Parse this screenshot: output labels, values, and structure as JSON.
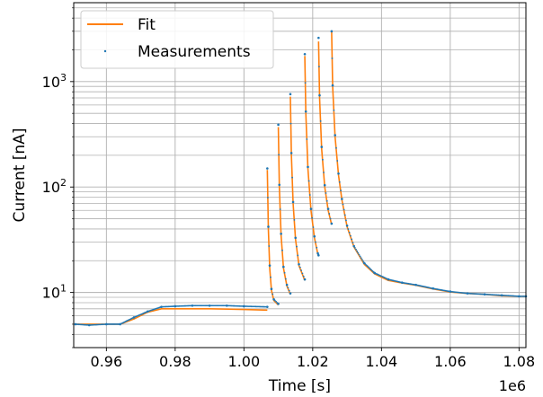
{
  "chart_data": {
    "type": "line",
    "title": "",
    "xlabel": "Time [s]",
    "ylabel": "Current [nA]",
    "x_offset_label": "1e6",
    "xlim": [
      0.9505,
      1.082
    ],
    "ylim": [
      3,
      5600
    ],
    "yscale": "log",
    "grid": true,
    "legend_position": "top-left",
    "x_ticks": [
      {
        "value": 0.96,
        "label": "0.96"
      },
      {
        "value": 0.98,
        "label": "0.98"
      },
      {
        "value": 1.0,
        "label": "1.00"
      },
      {
        "value": 1.02,
        "label": "1.02"
      },
      {
        "value": 1.04,
        "label": "1.04"
      },
      {
        "value": 1.06,
        "label": "1.06"
      },
      {
        "value": 1.08,
        "label": "1.08"
      }
    ],
    "y_ticks": [
      {
        "value": 10,
        "base": "10",
        "exp": "1"
      },
      {
        "value": 100,
        "base": "10",
        "exp": "2"
      },
      {
        "value": 1000,
        "base": "10",
        "exp": "3"
      }
    ],
    "colors": {
      "fit": "#ff7f0e",
      "measurements": "#1f77b4",
      "grid": "#b0b0b0"
    },
    "series": [
      {
        "name": "Fit",
        "style": "line",
        "segments": [
          [
            [
              0.951,
              5.0
            ],
            [
              0.964,
              5.0
            ],
            [
              0.968,
              5.6
            ],
            [
              0.972,
              6.5
            ],
            [
              0.976,
              7.0
            ],
            [
              0.98,
              7.0
            ],
            [
              0.99,
              7.0
            ],
            [
              1.0,
              6.9
            ],
            [
              1.0068,
              6.8
            ]
          ],
          [
            [
              1.0068,
              145
            ],
            [
              1.0071,
              40
            ],
            [
              1.0075,
              17
            ],
            [
              1.008,
              10.5
            ],
            [
              1.0087,
              8.4
            ],
            [
              1.01,
              7.6
            ]
          ],
          [
            [
              1.01,
              370
            ],
            [
              1.0103,
              100
            ],
            [
              1.0108,
              35
            ],
            [
              1.0115,
              17
            ],
            [
              1.0125,
              11.5
            ],
            [
              1.0135,
              9.6
            ]
          ],
          [
            [
              1.0135,
              720
            ],
            [
              1.0138,
              200
            ],
            [
              1.0143,
              70
            ],
            [
              1.015,
              32
            ],
            [
              1.016,
              18
            ],
            [
              1.0177,
              13
            ]
          ],
          [
            [
              1.0177,
              1750
            ],
            [
              1.018,
              500
            ],
            [
              1.0186,
              150
            ],
            [
              1.0195,
              60
            ],
            [
              1.0205,
              33
            ],
            [
              1.0215,
              23
            ],
            [
              1.0217,
              22
            ]
          ],
          [
            [
              1.0217,
              2400
            ],
            [
              1.022,
              700
            ],
            [
              1.0226,
              230
            ],
            [
              1.0235,
              100
            ],
            [
              1.0245,
              60
            ],
            [
              1.0255,
              44
            ]
          ],
          [
            [
              1.0255,
              3000
            ],
            [
              1.0258,
              900
            ],
            [
              1.0265,
              300
            ],
            [
              1.0275,
              130
            ],
            [
              1.0285,
              75
            ],
            [
              1.03,
              42
            ],
            [
              1.032,
              27
            ],
            [
              1.035,
              18.5
            ],
            [
              1.038,
              15
            ],
            [
              1.042,
              13
            ],
            [
              1.046,
              12.3
            ],
            [
              1.05,
              11.7
            ],
            [
              1.055,
              10.8
            ],
            [
              1.06,
              10.1
            ],
            [
              1.065,
              9.8
            ],
            [
              1.07,
              9.6
            ],
            [
              1.075,
              9.3
            ],
            [
              1.08,
              9.2
            ],
            [
              1.082,
              9.2
            ]
          ]
        ]
      },
      {
        "name": "Measurements",
        "style": "points",
        "segments": [
          [
            [
              0.951,
              5.0
            ],
            [
              0.955,
              4.9
            ],
            [
              0.96,
              5.0
            ],
            [
              0.964,
              5.0
            ],
            [
              0.968,
              5.8
            ],
            [
              0.972,
              6.6
            ],
            [
              0.976,
              7.3
            ],
            [
              0.98,
              7.4
            ],
            [
              0.985,
              7.5
            ],
            [
              0.99,
              7.5
            ],
            [
              0.995,
              7.5
            ],
            [
              1.0,
              7.4
            ],
            [
              1.0068,
              7.3
            ]
          ],
          [
            [
              1.0068,
              150
            ],
            [
              1.0071,
              42
            ],
            [
              1.0075,
              18
            ],
            [
              1.008,
              10.8
            ],
            [
              1.0087,
              8.6
            ],
            [
              1.01,
              7.8
            ]
          ],
          [
            [
              1.01,
              390
            ],
            [
              1.0103,
              105
            ],
            [
              1.0108,
              36
            ],
            [
              1.0115,
              17.5
            ],
            [
              1.0125,
              11.8
            ],
            [
              1.0135,
              9.8
            ]
          ],
          [
            [
              1.0135,
              760
            ],
            [
              1.0138,
              210
            ],
            [
              1.0143,
              72
            ],
            [
              1.015,
              33
            ],
            [
              1.016,
              18.5
            ],
            [
              1.0177,
              13.3
            ]
          ],
          [
            [
              1.0177,
              1820
            ],
            [
              1.018,
              520
            ],
            [
              1.0186,
              155
            ],
            [
              1.0195,
              62
            ],
            [
              1.0205,
              34
            ],
            [
              1.0215,
              23.5
            ],
            [
              1.0217,
              22.5
            ]
          ],
          [
            [
              1.0217,
              2600
            ],
            [
              1.022,
              740
            ],
            [
              1.0226,
              240
            ],
            [
              1.0235,
              104
            ],
            [
              1.0245,
              62
            ],
            [
              1.0255,
              45
            ]
          ],
          [
            [
              1.0255,
              3000
            ],
            [
              1.0258,
              920
            ],
            [
              1.0265,
              310
            ],
            [
              1.0275,
              134
            ],
            [
              1.0285,
              77
            ],
            [
              1.03,
              43
            ],
            [
              1.032,
              27.5
            ],
            [
              1.035,
              19
            ],
            [
              1.038,
              15.3
            ],
            [
              1.042,
              13.3
            ],
            [
              1.046,
              12.4
            ],
            [
              1.05,
              11.8
            ],
            [
              1.055,
              10.9
            ],
            [
              1.06,
              10.2
            ],
            [
              1.065,
              9.8
            ],
            [
              1.07,
              9.6
            ],
            [
              1.075,
              9.4
            ],
            [
              1.08,
              9.2
            ],
            [
              1.082,
              9.2
            ]
          ]
        ]
      }
    ]
  }
}
